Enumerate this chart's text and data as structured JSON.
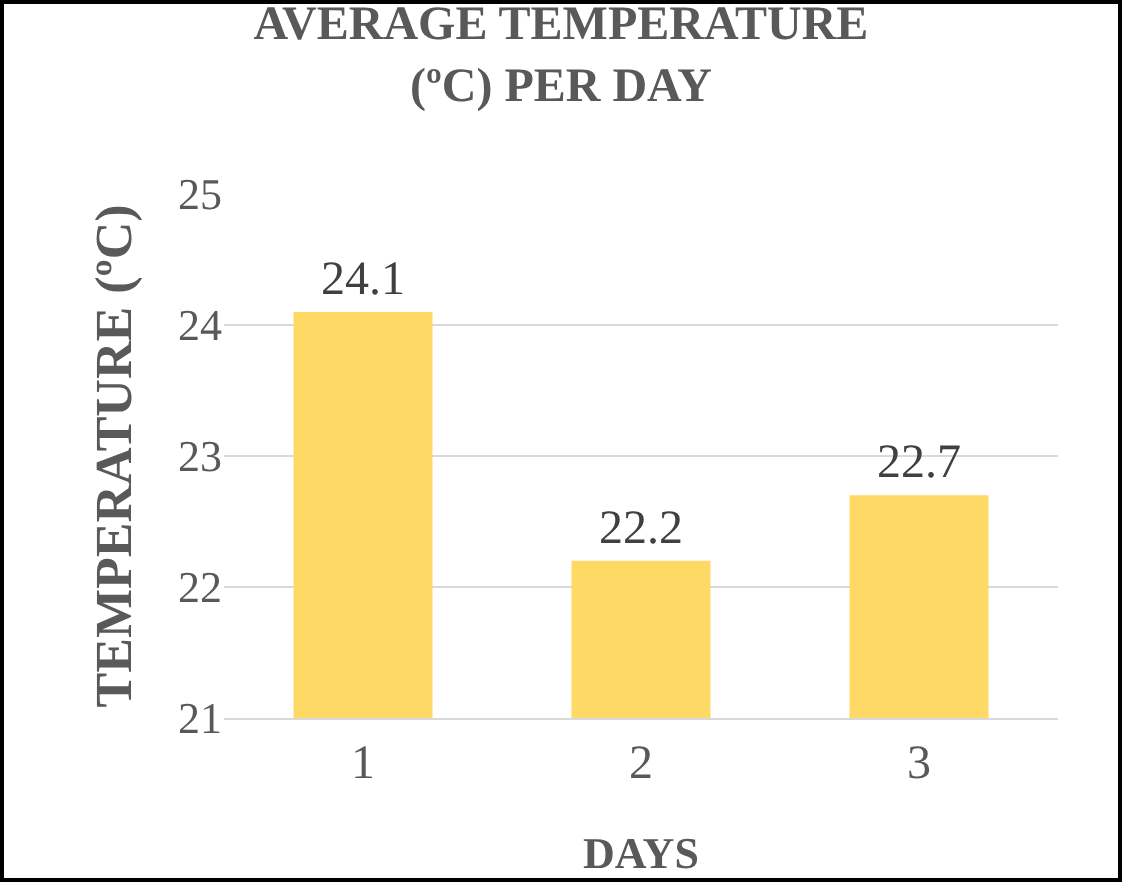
{
  "chart_data": {
    "type": "bar",
    "title": "AVERAGE TEMPERATURE (ºC) PER DAY",
    "xlabel": "DAYS",
    "ylabel": "TEMPERATURE (ºC)",
    "categories": [
      "1",
      "2",
      "3"
    ],
    "values": [
      24.1,
      22.2,
      22.7
    ],
    "color": "#ffd966",
    "ylim": [
      21,
      25
    ],
    "yticks": [
      21,
      22,
      23,
      24,
      25
    ],
    "grid": "y",
    "data_labels": true,
    "legend": false
  }
}
